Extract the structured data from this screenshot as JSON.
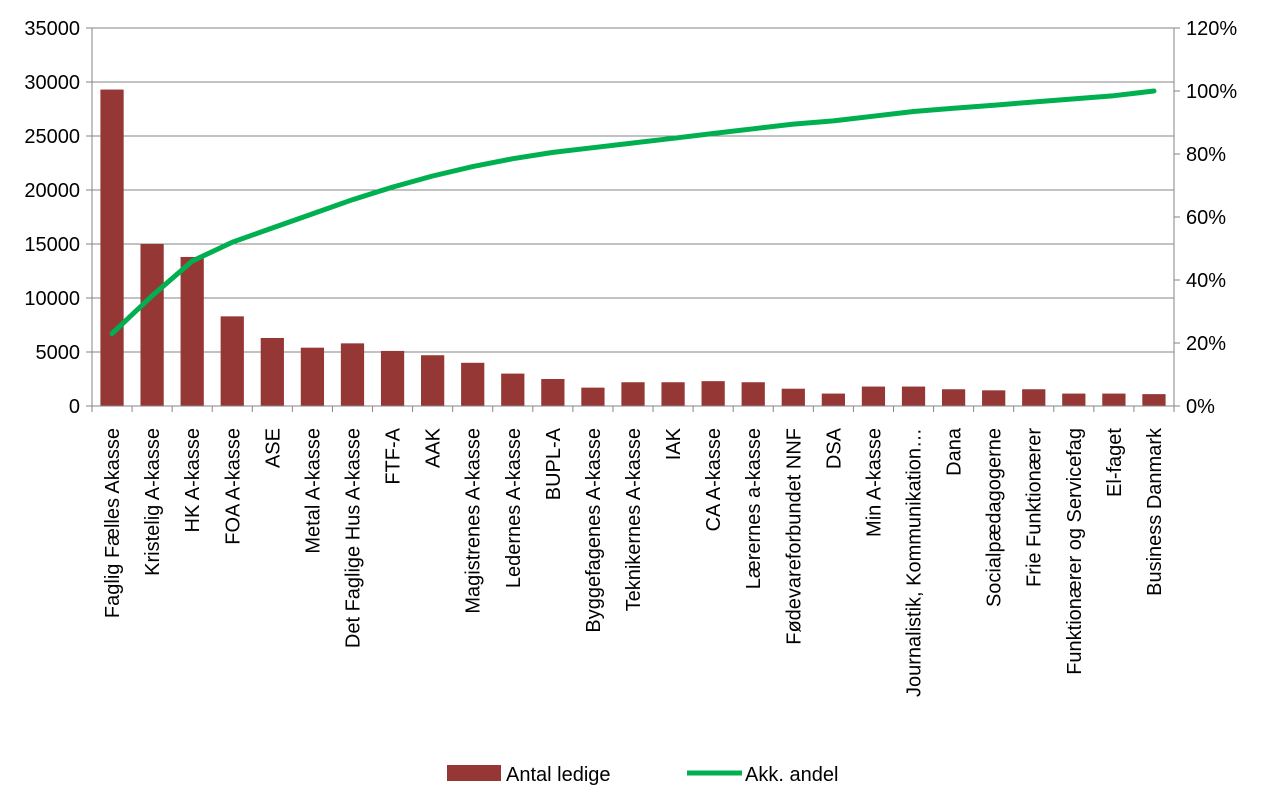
{
  "chart_data": {
    "type": "bar",
    "categories": [
      "Faglig Fælles Akasse",
      "Kristelig A-kasse",
      "HK A-kasse",
      "FOA A-kasse",
      "ASE",
      "Metal A-kasse",
      "Det Faglige Hus A-kasse",
      "FTF-A",
      "AAK",
      "Magistrenes A-kasse",
      "Ledernes A-kasse",
      "BUPL-A",
      "Byggefagenes A-kasse",
      "Teknikernes A-kasse",
      "IAK",
      "CA A-kasse",
      "Lærernes a-kasse",
      "Fødevareforbundet NNF",
      "DSA",
      "Min A-kasse",
      "Journalistik, Kommunikation…",
      "Dana",
      "Socialpædagogerne",
      "Frie Funktionærer",
      "Funktionærer og Servicefag",
      "El-faget",
      "Business Danmark"
    ],
    "series": [
      {
        "name": "Antal ledige",
        "type": "bar",
        "axis": "left",
        "color": "#953735",
        "values": [
          29300,
          15000,
          13800,
          8300,
          6300,
          5400,
          5800,
          5100,
          4700,
          4000,
          3000,
          2500,
          1700,
          2200,
          2200,
          2300,
          2200,
          1600,
          1150,
          1800,
          1800,
          1550,
          1450,
          1550,
          1150,
          1150,
          1100
        ]
      },
      {
        "name": "Akk. andel",
        "type": "line",
        "axis": "right",
        "color": "#00b050",
        "values": [
          0.23,
          0.35,
          0.46,
          0.52,
          0.565,
          0.61,
          0.655,
          0.695,
          0.73,
          0.76,
          0.785,
          0.805,
          0.82,
          0.835,
          0.85,
          0.865,
          0.88,
          0.895,
          0.905,
          0.92,
          0.935,
          0.945,
          0.955,
          0.965,
          0.975,
          0.985,
          1.0
        ]
      }
    ],
    "y_left": {
      "min": 0,
      "max": 35000,
      "step": 5000,
      "ticks": [
        "0",
        "5000",
        "10000",
        "15000",
        "20000",
        "25000",
        "30000",
        "35000"
      ]
    },
    "y_right": {
      "min": 0,
      "max": 1.2,
      "step": 0.2,
      "ticks": [
        "0%",
        "20%",
        "40%",
        "60%",
        "80%",
        "100%",
        "120%"
      ]
    },
    "grid": true,
    "legend_position": "bottom",
    "title": "",
    "xlabel": "",
    "ylabel": ""
  }
}
